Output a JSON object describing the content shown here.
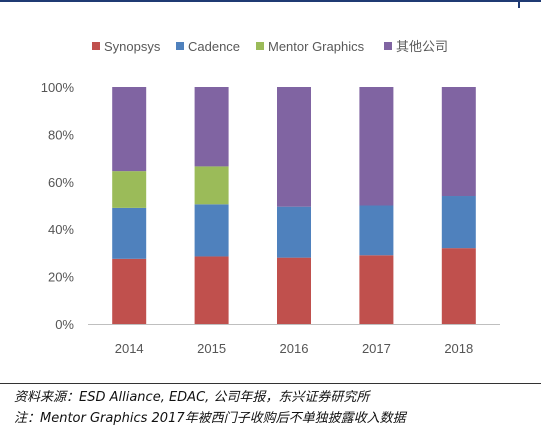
{
  "chart_data": {
    "type": "bar",
    "stacked": true,
    "categories": [
      "2014",
      "2015",
      "2016",
      "2017",
      "2018"
    ],
    "series": [
      {
        "name": "Synopsys",
        "color": "#c0504d",
        "values": [
          27.5,
          28.5,
          28,
          29,
          32
        ]
      },
      {
        "name": "Cadence",
        "color": "#4f81bd",
        "values": [
          21.5,
          22,
          21.5,
          21,
          22
        ]
      },
      {
        "name": "Mentor Graphics",
        "color": "#9bbb59",
        "values": [
          15.5,
          16,
          0,
          0,
          0
        ]
      },
      {
        "name": "其他公司",
        "color": "#8064a2",
        "values": [
          35.5,
          33.5,
          50.5,
          50,
          46
        ]
      }
    ],
    "ylim": [
      0,
      100
    ],
    "yticks": [
      "0%",
      "20%",
      "40%",
      "60%",
      "80%",
      "100%"
    ],
    "legend_position": "top",
    "grid": false
  },
  "footer": {
    "source": "资料来源：ESD Alliance, EDAC, 公司年报，东兴证券研究所",
    "note": "注：Mentor Graphics 2017年被西门子收购后不单独披露收入数据"
  }
}
